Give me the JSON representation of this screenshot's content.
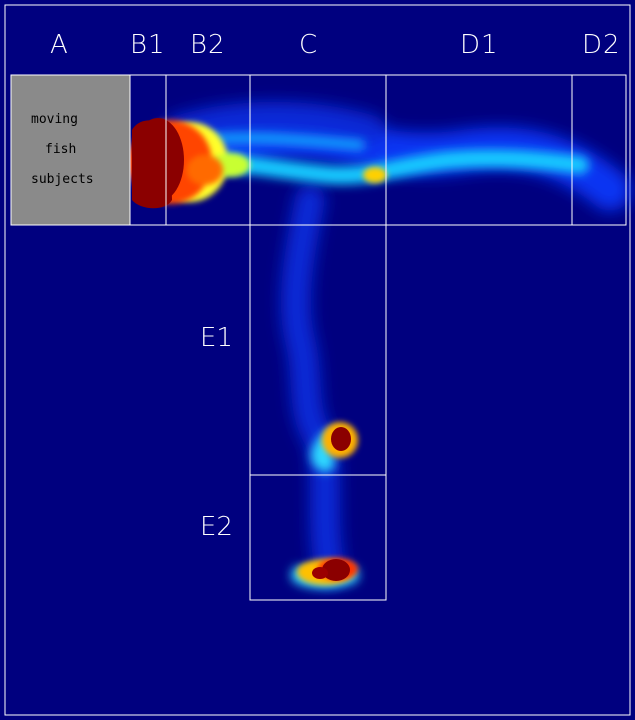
{
  "zones": {
    "A": "A",
    "B1": "B1",
    "B2": "B2",
    "C": "C",
    "D1": "D1",
    "D2": "D2",
    "E1": "E1",
    "E2": "E2"
  },
  "start_box": {
    "lines": [
      "moving",
      "fish",
      "subjects"
    ]
  },
  "colors": {
    "background": "#00007f",
    "start_box": "#8a8a8a",
    "outline": "#ffffff",
    "heat_high": "#8b0000"
  }
}
